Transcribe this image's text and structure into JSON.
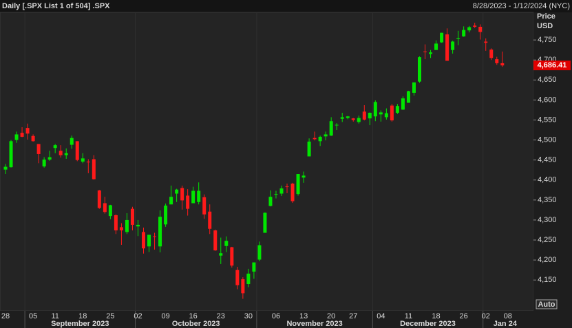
{
  "chart_data": {
    "type": "candlestick",
    "title": "Daily [.SPX List 1 of 504] .SPX",
    "date_range": "8/28/2023 - 1/12/2024 (NYC)",
    "y_label": "Price",
    "y_unit": "USD",
    "button": "Auto",
    "last_label": "4,686.41",
    "up_color": "#00e600",
    "down_color": "#ff1a1a",
    "ylim": [
      4073,
      4819
    ],
    "yticks": [
      {
        "value": 4150,
        "label": "4,150"
      },
      {
        "value": 4200,
        "label": "4,200"
      },
      {
        "value": 4250,
        "label": "4,250"
      },
      {
        "value": 4300,
        "label": "4,300"
      },
      {
        "value": 4350,
        "label": "4,350"
      },
      {
        "value": 4400,
        "label": "4,400"
      },
      {
        "value": 4450,
        "label": "4,450"
      },
      {
        "value": 4500,
        "label": "4,500"
      },
      {
        "value": 4550,
        "label": "4,550"
      },
      {
        "value": 4600,
        "label": "4,600"
      },
      {
        "value": 4650,
        "label": "4,650"
      },
      {
        "value": 4700,
        "label": "4,700"
      },
      {
        "value": 4750,
        "label": "4,750"
      }
    ],
    "categories": [
      "28",
      null,
      null,
      null,
      null,
      "05",
      null,
      null,
      null,
      "11",
      null,
      null,
      null,
      null,
      "18",
      null,
      null,
      null,
      null,
      "25",
      null,
      null,
      null,
      null,
      "02",
      null,
      null,
      null,
      null,
      "09",
      null,
      null,
      null,
      null,
      "16",
      null,
      null,
      null,
      null,
      "23",
      null,
      null,
      null,
      null,
      "30",
      null,
      null,
      null,
      null,
      "06",
      null,
      null,
      null,
      null,
      "13",
      null,
      null,
      null,
      null,
      "20",
      null,
      null,
      null,
      "27",
      null,
      null,
      null,
      null,
      "04",
      null,
      null,
      null,
      null,
      "11",
      null,
      null,
      null,
      null,
      "18",
      null,
      null,
      null,
      null,
      "26",
      null,
      null,
      null,
      "02",
      null,
      null,
      null,
      "08"
    ],
    "month_labels": [
      {
        "value": 4,
        "label": "September 2023"
      },
      {
        "value": 24,
        "label": "October 2023"
      },
      {
        "value": 46,
        "label": "November 2023"
      },
      {
        "value": 67,
        "label": "December 2023"
      },
      {
        "value": 87,
        "label": "Jan 24"
      }
    ],
    "open": [
      4426,
      4432,
      4500,
      4518,
      4530,
      4510,
      4490,
      4434,
      4451,
      4480,
      4473,
      4462,
      4488,
      4497,
      4446,
      4446,
      4452,
      4374,
      4342,
      4310,
      4312,
      4282,
      4270,
      4328,
      4284,
      4270,
      4234,
      4259,
      4234,
      4289,
      4339,
      4366,
      4380,
      4361,
      4342,
      4345,
      4357,
      4321,
      4274,
      4211,
      4235,
      4232,
      4175,
      4152,
      4140,
      4171,
      4201,
      4268,
      4335,
      4365,
      4366,
      4384,
      4391,
      4365,
      4406,
      4459,
      4505,
      4497,
      4509,
      4511,
      4538,
      4553,
      4555,
      4554,
      4545,
      4571,
      4554,
      4559,
      4564,
      4557,
      4586,
      4568,
      4576,
      4593,
      4618,
      4646,
      4721,
      4715,
      4725,
      4744,
      4764,
      4725,
      4753,
      4759,
      4774,
      4786,
      4783,
      4746,
      4726,
      4702,
      4692,
      null
    ],
    "high": [
      4440,
      4500,
      4521,
      4532,
      4541,
      4514,
      4490,
      4457,
      4473,
      4490,
      4487,
      4479,
      4511,
      4497,
      4467,
      4452,
      4462,
      4375,
      4358,
      4338,
      4314,
      4292,
      4317,
      4333,
      4300,
      4281,
      4263,
      4268,
      4324,
      4341,
      4386,
      4378,
      4386,
      4377,
      4383,
      4394,
      4364,
      4339,
      4276,
      4256,
      4259,
      4233,
      4183,
      4157,
      4178,
      4194,
      4246,
      4319,
      4374,
      4373,
      4386,
      4391,
      4393,
      4415,
      4421,
      4504,
      4521,
      4511,
      4521,
      4557,
      4542,
      4568,
      4560,
      4555,
      4561,
      4587,
      4569,
      4599,
      4574,
      4579,
      4590,
      4590,
      4609,
      4623,
      4644,
      4709,
      4739,
      4725,
      4749,
      4768,
      4779,
      4748,
      4773,
      4784,
      4785,
      4793,
      4789,
      4754,
      4729,
      4708,
      4721,
      null
    ],
    "low": [
      4415,
      4431,
      4493,
      4507,
      4501,
      4496,
      4442,
      4431,
      4448,
      4467,
      4456,
      4453,
      4478,
      4447,
      4442,
      4417,
      4401,
      4328,
      4316,
      4302,
      4265,
      4238,
      4265,
      4274,
      4260,
      4216,
      4220,
      4226,
      4219,
      4283,
      4339,
      4345,
      4326,
      4311,
      4342,
      4339,
      4303,
      4265,
      4223,
      4190,
      4220,
      4181,
      4127,
      4103,
      4132,
      4153,
      4197,
      4268,
      4334,
      4354,
      4360,
      4367,
      4343,
      4361,
      4393,
      4459,
      4499,
      4485,
      4499,
      4510,
      4525,
      4545,
      4552,
      4546,
      4541,
      4549,
      4537,
      4547,
      4546,
      4551,
      4546,
      4565,
      4575,
      4593,
      4611,
      4643,
      4702,
      4705,
      4725,
      4743,
      4698,
      4716,
      4737,
      4758,
      4769,
      4780,
      4751,
      4723,
      4700,
      4688,
      4683,
      null
    ],
    "close": [
      4433,
      4497,
      4514,
      4508,
      4516,
      4497,
      4465,
      4451,
      4457,
      4487,
      4462,
      4467,
      4505,
      4450,
      4454,
      4444,
      4402,
      4330,
      4320,
      4337,
      4274,
      4274,
      4300,
      4288,
      4288,
      4229,
      4263,
      4258,
      4308,
      4336,
      4358,
      4376,
      4349,
      4328,
      4373,
      4373,
      4314,
      4278,
      4224,
      4217,
      4248,
      4186,
      4137,
      4117,
      4166,
      4194,
      4237,
      4318,
      4358,
      4365,
      4379,
      4383,
      4347,
      4415,
      4411,
      4496,
      4502,
      4508,
      4514,
      4547,
      4538,
      4557,
      4559,
      4550,
      4555,
      4551,
      4568,
      4595,
      4569,
      4567,
      4549,
      4585,
      4604,
      4622,
      4644,
      4707,
      4720,
      4719,
      4741,
      4768,
      4698,
      4746,
      4755,
      4775,
      4782,
      4783,
      4770,
      4743,
      4705,
      4692,
      4686.41,
      null
    ]
  }
}
